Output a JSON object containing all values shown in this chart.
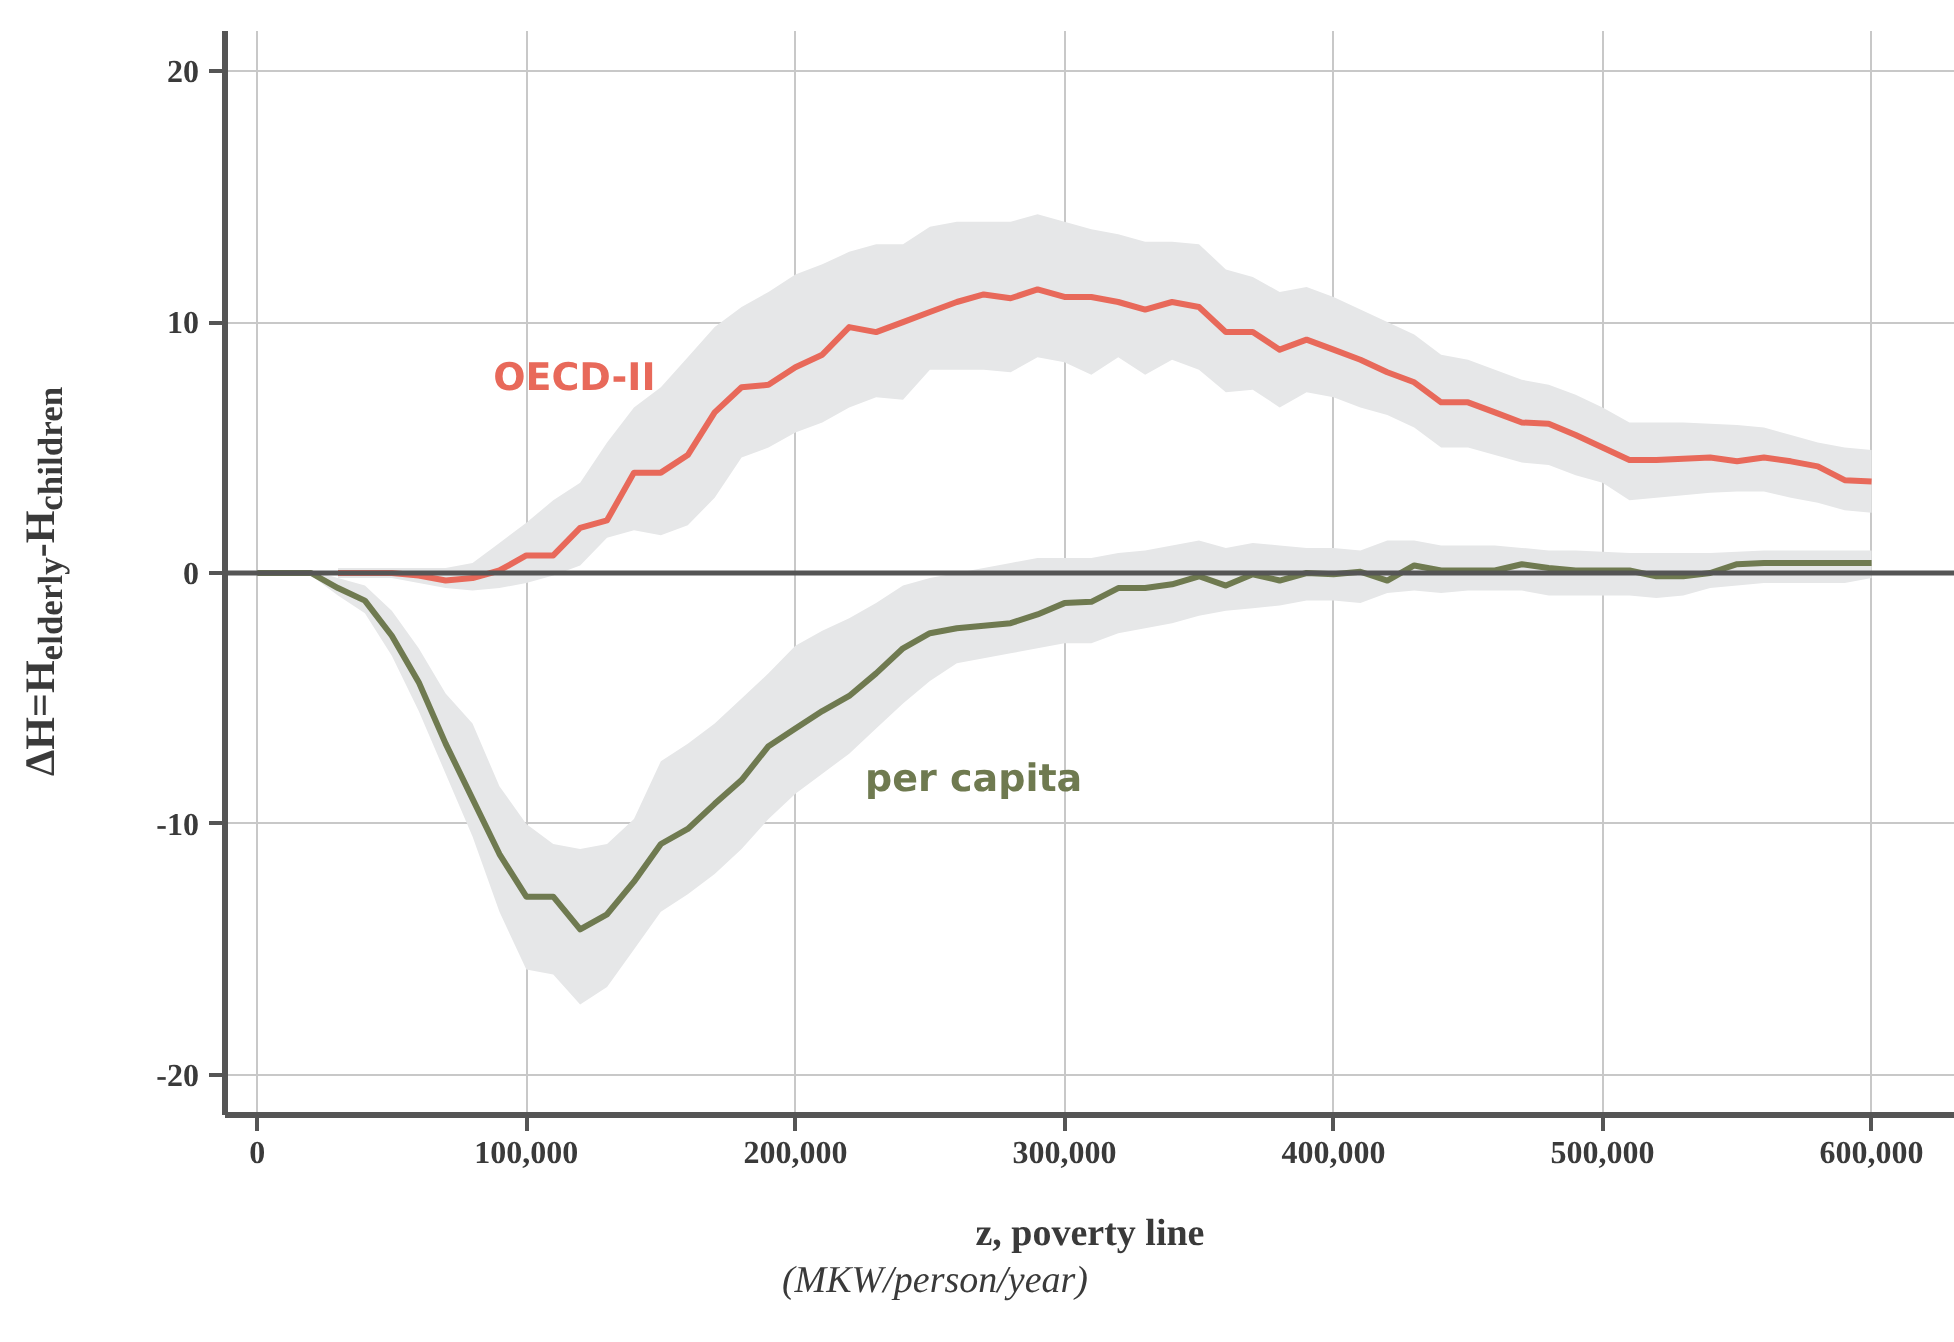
{
  "chart_data": {
    "type": "line",
    "xlabel": "z, poverty line",
    "ylabel": "ΔH=H$_{elderly}$-H$_{children}$",
    "x": [
      0,
      10000,
      20000,
      30000,
      40000,
      50000,
      60000,
      70000,
      80000,
      90000,
      100000,
      110000,
      120000,
      130000,
      140000,
      150000,
      160000,
      170000,
      180000,
      190000,
      200000,
      210000,
      220000,
      230000,
      240000,
      250000,
      260000,
      270000,
      280000,
      290000,
      300000,
      310000,
      320000,
      330000,
      340000,
      350000,
      360000,
      370000,
      380000,
      390000,
      400000,
      410000,
      420000,
      430000,
      440000,
      450000,
      460000,
      470000,
      480000,
      490000,
      500000,
      510000,
      520000,
      530000,
      540000,
      550000,
      560000,
      570000,
      580000,
      590000,
      600000
    ],
    "series": [
      {
        "name": "OECD-II",
        "color": "#e8695a",
        "x": [
          30000,
          40000,
          50000,
          60000,
          70000,
          80000,
          90000,
          100000,
          110000,
          120000,
          130000,
          140000,
          150000,
          160000,
          170000,
          180000,
          190000,
          200000,
          210000,
          220000,
          230000,
          240000,
          250000,
          260000,
          270000,
          280000,
          290000,
          300000,
          310000,
          320000,
          330000,
          340000,
          350000,
          360000,
          370000,
          380000,
          390000,
          400000,
          410000,
          420000,
          430000,
          440000,
          450000,
          460000,
          470000,
          480000,
          490000,
          500000,
          510000,
          520000,
          530000,
          540000,
          550000,
          560000,
          570000,
          580000,
          590000,
          600000
        ],
        "values": [
          0,
          0,
          0,
          -0.1,
          -0.3,
          -0.2,
          0.1,
          0.7,
          0.7,
          1.8,
          2.1,
          4.0,
          4.0,
          4.7,
          6.4,
          7.4,
          7.5,
          8.2,
          8.7,
          9.8,
          9.6,
          10.0,
          10.4,
          10.8,
          11.1,
          10.95,
          11.3,
          11.0,
          11.0,
          10.8,
          10.5,
          10.8,
          10.6,
          9.6,
          9.6,
          8.9,
          9.3,
          8.9,
          8.5,
          8.0,
          7.6,
          6.8,
          6.8,
          6.4,
          6.0,
          5.95,
          5.5,
          5.0,
          4.5,
          4.5,
          4.55,
          4.6,
          4.45,
          4.6,
          4.45,
          4.25,
          3.7,
          3.65
        ],
        "lower": [
          -0.2,
          -0.2,
          -0.2,
          -0.4,
          -0.6,
          -0.7,
          -0.6,
          -0.4,
          -0.1,
          0.3,
          1.4,
          1.7,
          1.5,
          1.9,
          3.0,
          4.6,
          5.0,
          5.6,
          6.0,
          6.6,
          7.0,
          6.9,
          8.1,
          8.1,
          8.1,
          8.0,
          8.6,
          8.4,
          7.9,
          8.6,
          7.9,
          8.5,
          8.1,
          7.2,
          7.3,
          6.6,
          7.2,
          7.0,
          6.6,
          6.3,
          5.8,
          5.0,
          5.0,
          4.7,
          4.4,
          4.3,
          3.9,
          3.6,
          2.9,
          3.0,
          3.1,
          3.2,
          3.25,
          3.25,
          3.0,
          2.8,
          2.5,
          2.4
        ],
        "upper": [
          0.2,
          0.2,
          0.2,
          0.2,
          0.2,
          0.4,
          1.2,
          2.0,
          2.9,
          3.6,
          5.2,
          6.6,
          7.4,
          8.6,
          9.8,
          10.6,
          11.2,
          11.9,
          12.3,
          12.8,
          13.1,
          13.1,
          13.8,
          14.0,
          14.0,
          14.0,
          14.3,
          14.0,
          13.7,
          13.5,
          13.2,
          13.2,
          13.1,
          12.1,
          11.8,
          11.2,
          11.4,
          11.0,
          10.5,
          10.0,
          9.5,
          8.7,
          8.5,
          8.1,
          7.7,
          7.5,
          7.1,
          6.6,
          6.0,
          6.0,
          6.0,
          5.95,
          5.9,
          5.8,
          5.5,
          5.2,
          5.0,
          4.9
        ]
      },
      {
        "name": "per capita",
        "color": "#6f7a50",
        "values": [
          0,
          0,
          0,
          -0.6,
          -1.1,
          -2.5,
          -4.35,
          -6.8,
          -9.0,
          -11.2,
          -12.9,
          -12.9,
          -14.2,
          -13.6,
          -12.3,
          -10.8,
          -10.2,
          -9.2,
          -8.25,
          -6.9,
          -6.2,
          -5.5,
          -4.9,
          -4.0,
          -3.0,
          -2.4,
          -2.2,
          -2.1,
          -2.0,
          -1.65,
          -1.2,
          -1.15,
          -0.6,
          -0.6,
          -0.45,
          -0.13,
          -0.5,
          -0.05,
          -0.3,
          0.0,
          -0.05,
          0.05,
          -0.3,
          0.3,
          0.1,
          0.1,
          0.1,
          0.35,
          0.2,
          0.1,
          0.1,
          0.1,
          -0.13,
          -0.13,
          0.0,
          0.35,
          0.4,
          0.4,
          0.4,
          0.4,
          0.4
        ],
        "lower": [
          -0.1,
          -0.1,
          -0.1,
          -0.9,
          -1.6,
          -3.3,
          -5.5,
          -8.0,
          -10.5,
          -13.5,
          -15.8,
          -16.0,
          -17.2,
          -16.5,
          -15.0,
          -13.5,
          -12.8,
          -12.0,
          -11.0,
          -9.8,
          -8.8,
          -8.0,
          -7.2,
          -6.2,
          -5.2,
          -4.3,
          -3.6,
          -3.4,
          -3.2,
          -3.0,
          -2.8,
          -2.8,
          -2.4,
          -2.2,
          -2.0,
          -1.7,
          -1.5,
          -1.4,
          -1.3,
          -1.1,
          -1.1,
          -1.2,
          -0.8,
          -0.7,
          -0.8,
          -0.7,
          -0.7,
          -0.7,
          -0.9,
          -0.9,
          -0.9,
          -0.9,
          -1.0,
          -0.9,
          -0.6,
          -0.5,
          -0.4,
          -0.4,
          -0.4,
          -0.4,
          -0.2
        ],
        "upper": [
          0.1,
          0.1,
          0.1,
          -0.2,
          -0.5,
          -1.5,
          -3.0,
          -4.8,
          -6.0,
          -8.5,
          -10.0,
          -10.8,
          -11.0,
          -10.8,
          -9.8,
          -7.5,
          -6.8,
          -6.0,
          -5.0,
          -4.0,
          -2.9,
          -2.3,
          -1.8,
          -1.2,
          -0.5,
          -0.2,
          0.0,
          0.2,
          0.4,
          0.6,
          0.6,
          0.6,
          0.8,
          0.9,
          1.1,
          1.3,
          1.0,
          1.2,
          1.1,
          1.0,
          1.0,
          0.9,
          1.3,
          1.3,
          1.1,
          1.1,
          1.1,
          1.0,
          0.9,
          0.9,
          0.85,
          0.8,
          0.8,
          0.8,
          0.8,
          0.85,
          0.9,
          0.9,
          0.9,
          0.9,
          0.9
        ]
      }
    ],
    "annotations": [
      "(MKW/person/year)"
    ],
    "xlim": [
      -12000,
      631000
    ],
    "ylim": [
      -21.6,
      21.6
    ],
    "xticks": [
      0,
      {
        "value": 100000,
        "label": "100,000"
      },
      {
        "value": 200000,
        "label": "200,000"
      },
      {
        "value": 300000,
        "label": "300,000"
      },
      {
        "value": 400000,
        "label": "400,000"
      },
      {
        "value": 500000,
        "label": "500,000"
      },
      {
        "value": 600000,
        "label": "600,000"
      }
    ],
    "yticks": [
      -20,
      -10,
      0,
      10,
      20
    ],
    "ref_lines": [
      {
        "axis": "y",
        "value": 0,
        "color": "#555555"
      }
    ],
    "grid": true,
    "legend": false,
    "line_style": "solid",
    "marker": "none"
  }
}
